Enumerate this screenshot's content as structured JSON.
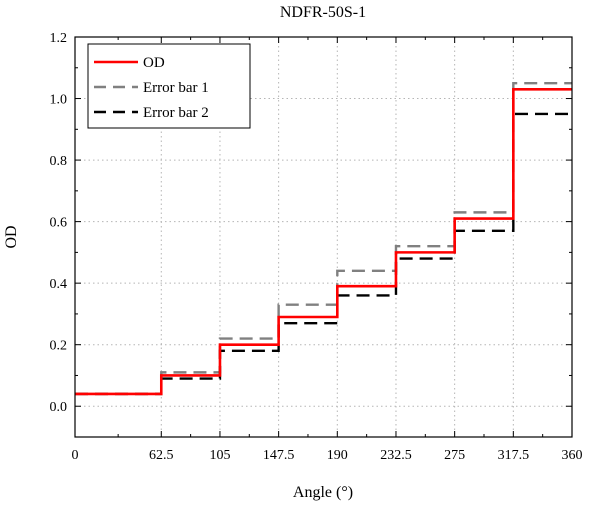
{
  "chart_data": {
    "type": "line",
    "title": "NDFR-50S-1",
    "xlabel": "Angle (°)",
    "ylabel": "OD",
    "xlim": [
      0,
      360
    ],
    "ylim": [
      -0.1,
      1.2
    ],
    "xticks": [
      "0",
      "62.5",
      "105",
      "147.5",
      "190",
      "232.5",
      "275",
      "317.5",
      "360"
    ],
    "xtick_values": [
      0,
      62.5,
      105,
      147.5,
      190,
      232.5,
      275,
      317.5,
      360
    ],
    "yticks": [
      "0.0",
      "0.2",
      "0.4",
      "0.6",
      "0.8",
      "1.0",
      "1.2"
    ],
    "ytick_values": [
      0,
      0.2,
      0.4,
      0.6,
      0.8,
      1.0,
      1.2
    ],
    "grid": true,
    "legend_position": "top-left",
    "step_edges": [
      0,
      62.5,
      105,
      147.5,
      190,
      232.5,
      275,
      317.5,
      360
    ],
    "series": [
      {
        "name": "OD",
        "color": "#ff0000",
        "style": "solid",
        "values": [
          0.04,
          0.1,
          0.2,
          0.29,
          0.39,
          0.5,
          0.61,
          1.03
        ]
      },
      {
        "name": "Error bar 1",
        "color": "#808080",
        "style": "dashed",
        "values": [
          0.04,
          0.11,
          0.22,
          0.33,
          0.44,
          0.52,
          0.63,
          1.05
        ]
      },
      {
        "name": "Error bar 2",
        "color": "#000000",
        "style": "dashed",
        "values": [
          0.04,
          0.09,
          0.18,
          0.27,
          0.36,
          0.48,
          0.57,
          0.95
        ]
      }
    ]
  }
}
